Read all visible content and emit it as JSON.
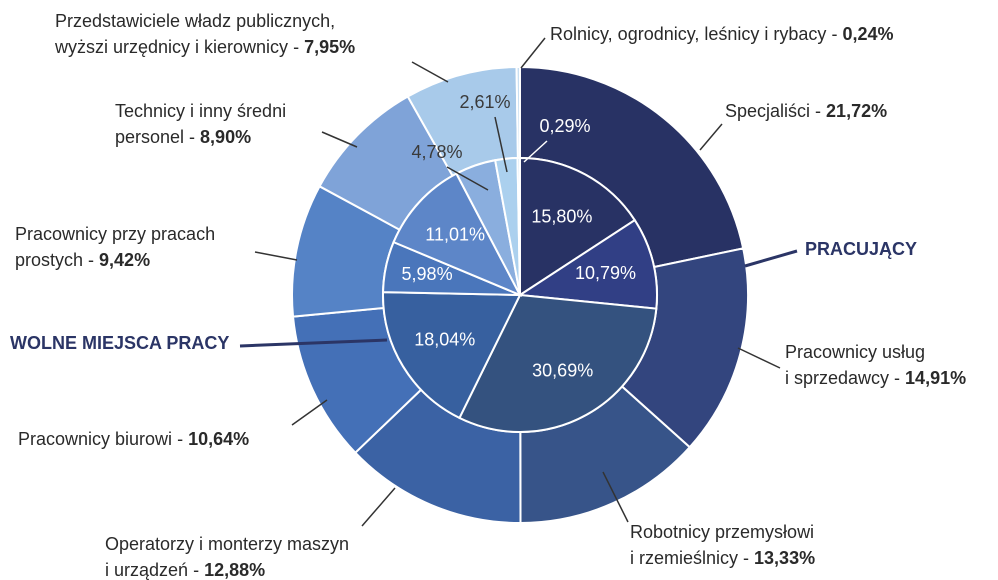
{
  "chart_data": {
    "type": "donut",
    "categories": [
      "Specjaliści",
      "Pracownicy usług\ni sprzedawcy",
      "Robotnicy przemysłowi\ni rzemieślnicy",
      "Operatorzy i monterzy maszyn\ni urządzeń",
      "Pracownicy biurowi",
      "Pracownicy przy pracach\nprostych",
      "Technicy i inny średni\npersonel",
      "Przedstawiciele władz publicznych,\nwyższi urzędnicy i kierownicy",
      "Rolnicy, ogrodnicy, leśnicy i rybacy"
    ],
    "separator": "-",
    "series": [
      {
        "name": "PRACUJĄCY",
        "values": [
          21.72,
          14.91,
          13.33,
          12.88,
          10.64,
          9.42,
          8.9,
          7.95,
          0.24
        ],
        "value_labels": [
          "21,72%",
          "14,91%",
          "13,33%",
          "12,88%",
          "10,64%",
          "9,42%",
          "8,90%",
          "7,95%",
          "0,24%"
        ],
        "colors": [
          "#283264",
          "#33457e",
          "#375489",
          "#3b62a4",
          "#4470b7",
          "#5583c6",
          "#7fa3d8",
          "#a8caea",
          "#c9dff2"
        ]
      },
      {
        "name": "WOLNE MIEJSCA PRACY",
        "values": [
          15.8,
          10.79,
          30.69,
          18.04,
          5.98,
          11.01,
          4.78,
          2.61,
          0.29
        ],
        "value_labels": [
          "15,80%",
          "10,79%",
          "30,69%",
          "18,04%",
          "5,98%",
          "11,01%",
          "4,78%",
          "2,61%",
          "0,29%"
        ],
        "colors": [
          "#283264",
          "#313f85",
          "#34527f",
          "#37609f",
          "#4a76bb",
          "#5d86c8",
          "#8aaede",
          "#abd0ee",
          "#c9dff2"
        ]
      }
    ]
  }
}
